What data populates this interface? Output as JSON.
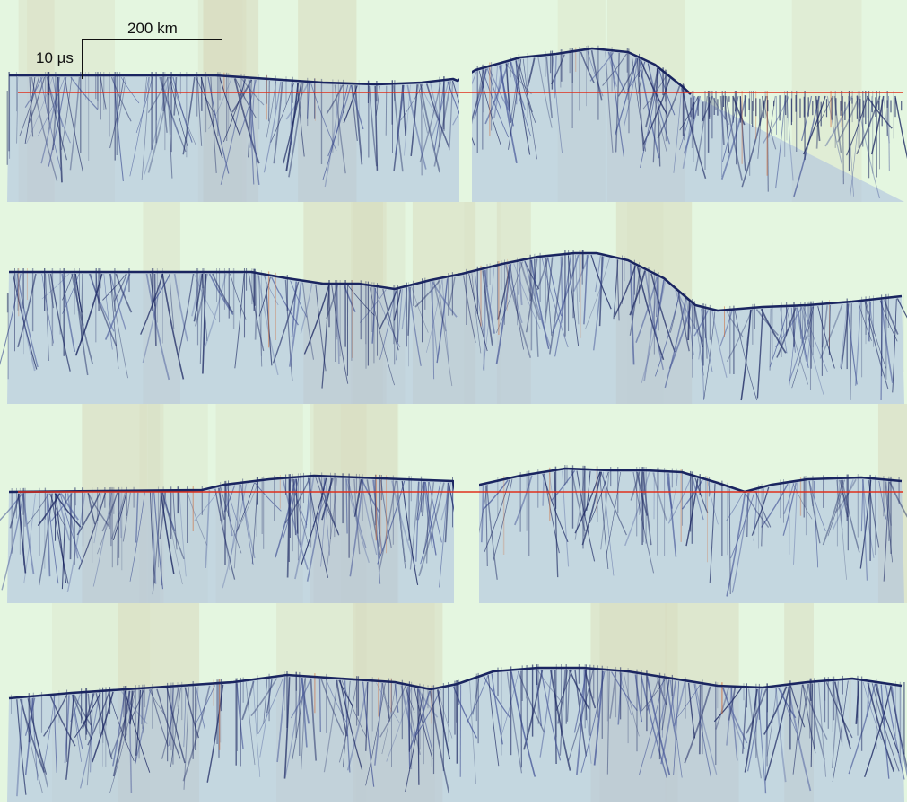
{
  "figure": {
    "type": "radargram-panels",
    "panel_count": 4,
    "palette": {
      "background": "#e4f6e0",
      "noise_tan": "#d8dcc0",
      "echo_dark": "#1a2560",
      "echo_mid": "#4a5a9a",
      "echo_light": "#a9bde0",
      "reference_line": "#e0301c",
      "clutter_orange": "#d07040"
    },
    "scale_bar": {
      "horizontal_label": "200 km",
      "vertical_label": "10 µs"
    },
    "panels": [
      {
        "name": "panel-1",
        "has_reference_line": true,
        "has_data_gap": true
      },
      {
        "name": "panel-2",
        "has_reference_line": false,
        "has_data_gap": false
      },
      {
        "name": "panel-3",
        "has_reference_line": true,
        "has_data_gap": true
      },
      {
        "name": "panel-4",
        "has_reference_line": false,
        "has_data_gap": false
      }
    ]
  }
}
